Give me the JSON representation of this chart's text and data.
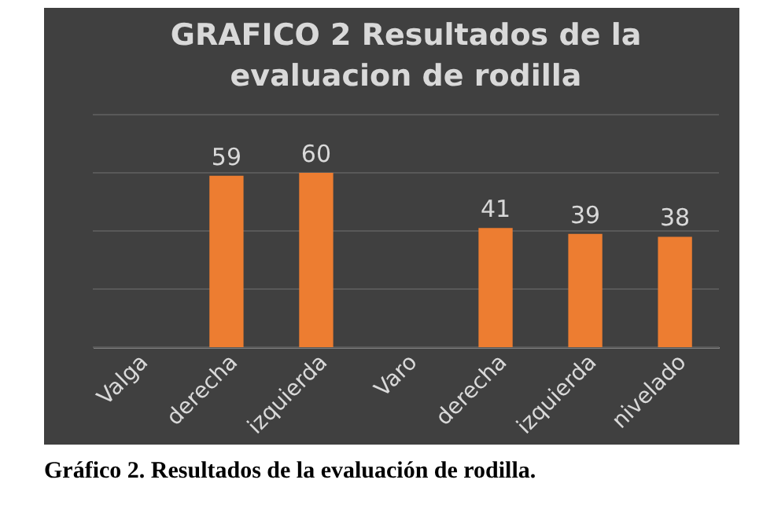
{
  "chart_data": {
    "type": "bar",
    "title": "GRAFICO 2 Resultados de la evaluacion  de rodilla",
    "categories": [
      "Valga",
      "derecha",
      "izquierda",
      "Varo",
      "derecha",
      "izquierda",
      "nivelado"
    ],
    "values": [
      null,
      59,
      60,
      null,
      41,
      39,
      38
    ],
    "color": "#ed7d31",
    "ylim": [
      0,
      80
    ],
    "yticks": [
      0,
      20,
      40,
      60,
      80
    ],
    "grid": "y",
    "tick_labels": "x",
    "data_labels": true,
    "annotations": [
      "Gráfico 2. Resultados de la evaluación de rodilla."
    ]
  }
}
